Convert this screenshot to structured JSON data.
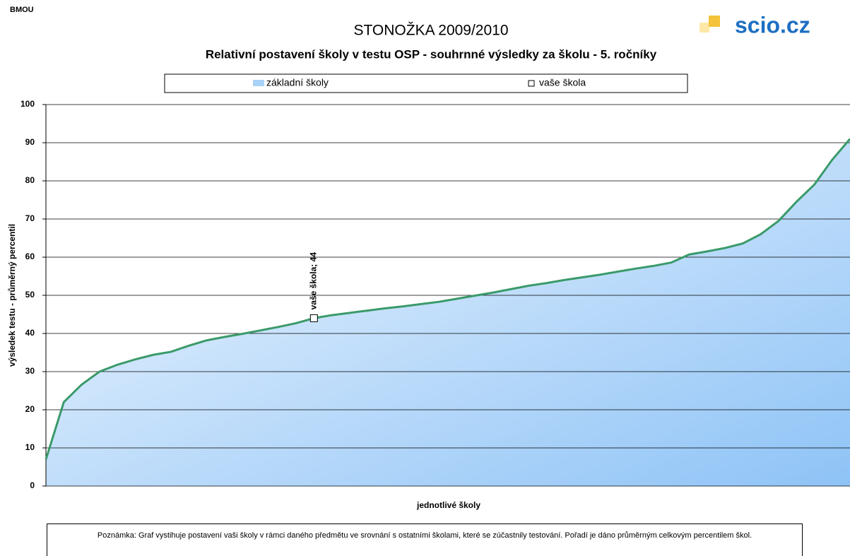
{
  "header": {
    "code": "BMOU",
    "title": "STONOŽKA 2009/2010",
    "logo": "scio.cz"
  },
  "chart_data": {
    "type": "area",
    "title": "Relativní postavení školy v testu OSP - souhrnné výsledky za školu - 5. ročníky",
    "ylabel": "výsledek testu - průměrný percentil",
    "xlabel": "jednotlivé školy",
    "ylim": [
      0,
      100
    ],
    "yticks": [
      0,
      10,
      20,
      30,
      40,
      50,
      60,
      70,
      80,
      90,
      100
    ],
    "grid": true,
    "series": [
      {
        "name": "základní školy",
        "color": "#3a9a6a",
        "values": [
          7,
          22,
          26.6,
          30,
          31.8,
          33.2,
          34.4,
          35.2,
          36.8,
          38.2,
          39.1,
          39.9,
          40.8,
          41.7,
          42.7,
          44,
          44.8,
          45.4,
          46,
          46.6,
          47.1,
          47.7,
          48.3,
          49.1,
          49.9,
          50.7,
          51.6,
          52.5,
          53.2,
          54,
          54.7,
          55.4,
          56.2,
          57,
          57.7,
          58.6,
          60.7,
          61.5,
          62.4,
          63.6,
          66,
          69.5,
          74.5,
          79,
          85.5,
          91
        ]
      }
    ],
    "highlight": {
      "name": "vaše škola",
      "index": 15,
      "value": 44,
      "value_label": "vaše škola; 44"
    }
  },
  "note": "Poznámka: Graf vystihuje postavení vaši školy v rámci daného předmětu ve srovnání s ostatními školami, které se zúčastnily testování. Pořadí je dáno průměrným celkovým percentilem škol."
}
